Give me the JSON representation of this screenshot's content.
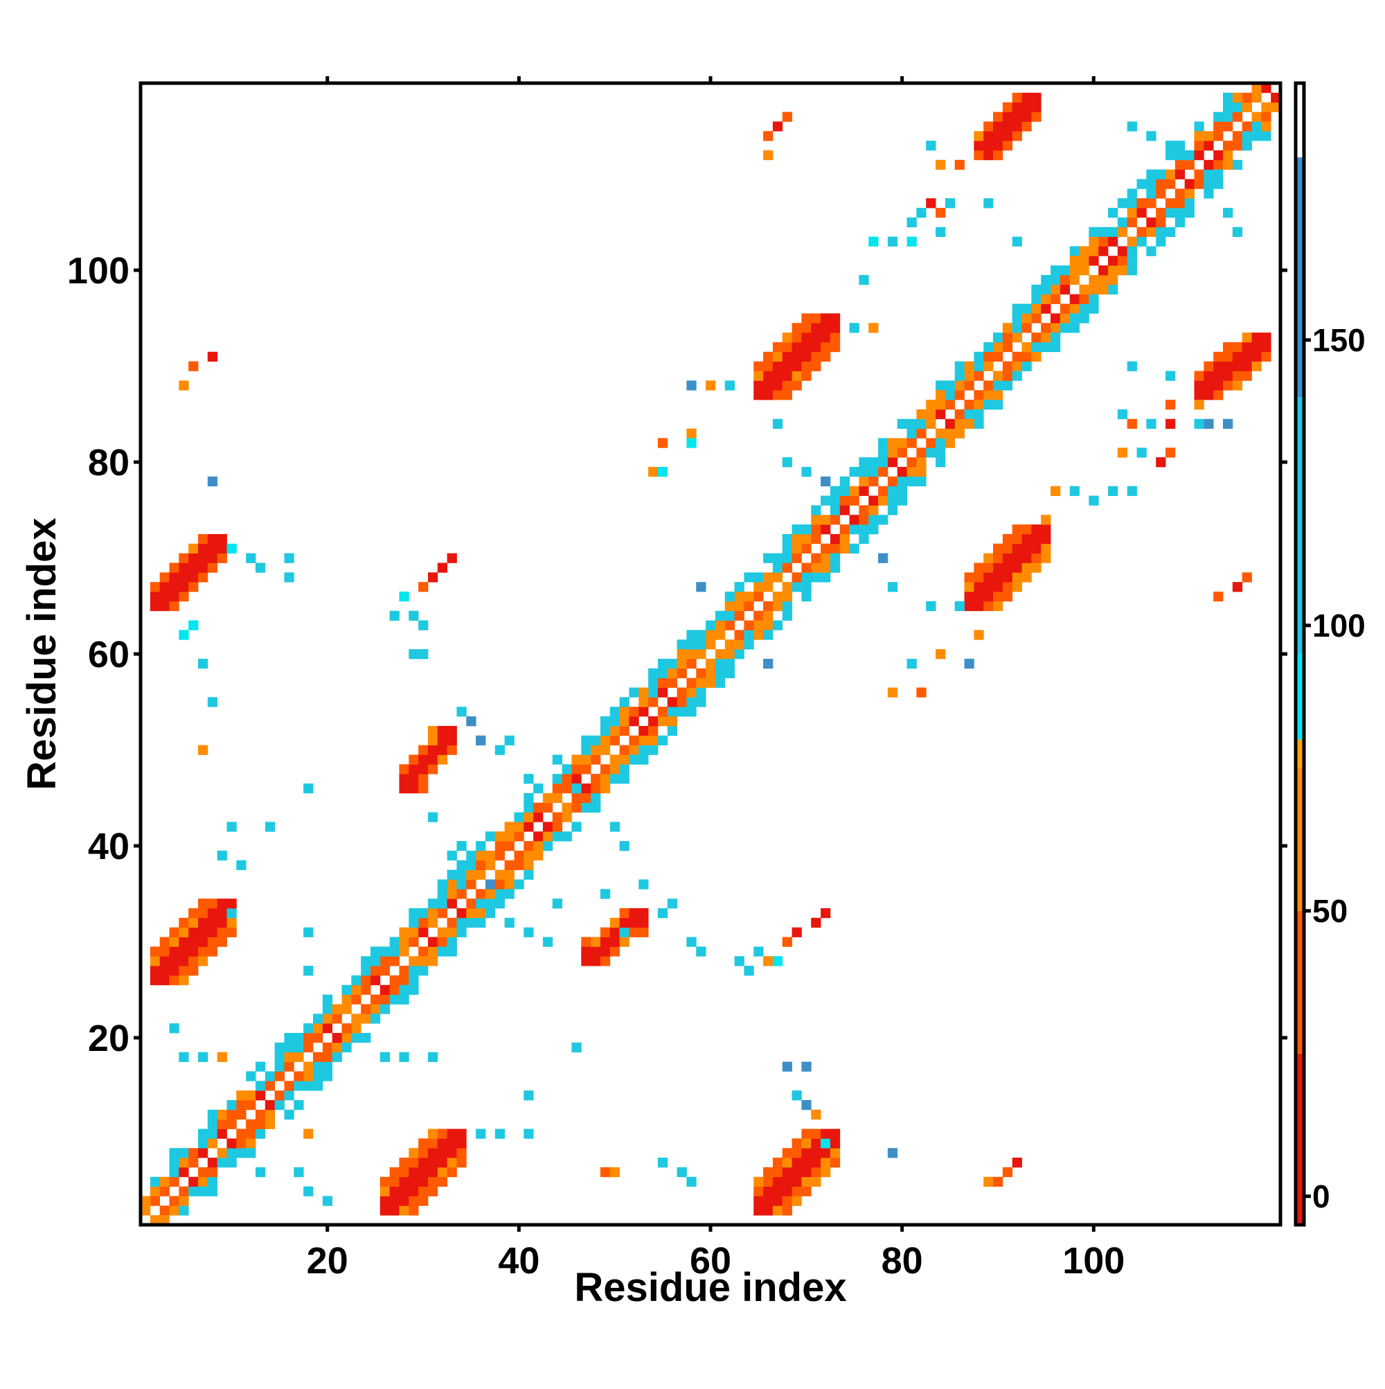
{
  "chart_data": {
    "type": "heatmap",
    "title": "",
    "xlabel": "Residue index",
    "ylabel": "Residue index",
    "xlim": [
      1,
      119
    ],
    "ylim": [
      1,
      119
    ],
    "x_ticks": [
      20,
      40,
      60,
      80,
      100
    ],
    "y_ticks": [
      20,
      40,
      60,
      80,
      100
    ],
    "colorbar": {
      "ticks": [
        0,
        50,
        100,
        150
      ],
      "range": [
        -5,
        195
      ],
      "bands": [
        {
          "from": -5,
          "to": 25,
          "color": "#e8160c"
        },
        {
          "from": 25,
          "to": 50,
          "color": "#ff5a00"
        },
        {
          "from": 50,
          "to": 75,
          "color": "#ff8c00"
        },
        {
          "from": 75,
          "to": 80,
          "color": "#ffa500"
        },
        {
          "from": 80,
          "to": 95,
          "color": "#00e5ee"
        },
        {
          "from": 95,
          "to": 140,
          "color": "#1ec8e0"
        },
        {
          "from": 140,
          "to": 182,
          "color": "#3e8fc8"
        },
        {
          "from": 182,
          "to": 195,
          "color": "#ffffff"
        }
      ]
    },
    "value_colors": {
      "red": "#e8160c",
      "orange_red": "#ff5a00",
      "orange": "#ff8c00",
      "amber": "#ffa500",
      "cyan": "#00e5ee",
      "sky": "#1ec8e0",
      "steel": "#3e8fc8"
    },
    "grid": false,
    "diagonal_band": {
      "from": 2,
      "to": 118,
      "half_width": 2
    },
    "sheet_blocks": [
      {
        "x": [
          26,
          34
        ],
        "y": [
          2,
          10
        ],
        "color_core": "red",
        "color_edge": "orange_red"
      },
      {
        "x": [
          65,
          73
        ],
        "y": [
          2,
          10
        ],
        "color_core": "red",
        "color_edge": "orange_red"
      },
      {
        "x": [
          2,
          10
        ],
        "y": [
          26,
          34
        ],
        "color_core": "red",
        "color_edge": "orange_red"
      },
      {
        "x": [
          2,
          9
        ],
        "y": [
          65,
          72
        ],
        "color_core": "red",
        "color_edge": "orange_red"
      },
      {
        "x": [
          28,
          33
        ],
        "y": [
          46,
          52
        ],
        "color_core": "red",
        "color_edge": "orange_red"
      },
      {
        "x": [
          47,
          53
        ],
        "y": [
          28,
          33
        ],
        "color_core": "red",
        "color_edge": "orange_red"
      },
      {
        "x": [
          65,
          73
        ],
        "y": [
          87,
          95
        ],
        "color_core": "red",
        "color_edge": "orange_red"
      },
      {
        "x": [
          87,
          95
        ],
        "y": [
          65,
          73
        ],
        "color_core": "red",
        "color_edge": "orange_red"
      },
      {
        "x": [
          88,
          94
        ],
        "y": [
          112,
          118
        ],
        "color_core": "red",
        "color_edge": "orange_red"
      },
      {
        "x": [
          111,
          118
        ],
        "y": [
          87,
          93
        ],
        "color_core": "red",
        "color_edge": "orange_red"
      }
    ],
    "scatter_cells": [
      {
        "x": 5,
        "y": 88,
        "c": "orange"
      },
      {
        "x": 6,
        "y": 90,
        "c": "orange_red"
      },
      {
        "x": 8,
        "y": 91,
        "c": "red"
      },
      {
        "x": 8,
        "y": 78,
        "c": "steel"
      },
      {
        "x": 10,
        "y": 71,
        "c": "cyan"
      },
      {
        "x": 12,
        "y": 70,
        "c": "sky"
      },
      {
        "x": 13,
        "y": 69,
        "c": "sky"
      },
      {
        "x": 16,
        "y": 70,
        "c": "sky"
      },
      {
        "x": 16,
        "y": 68,
        "c": "sky"
      },
      {
        "x": 5,
        "y": 62,
        "c": "cyan"
      },
      {
        "x": 6,
        "y": 63,
        "c": "cyan"
      },
      {
        "x": 7,
        "y": 59,
        "c": "sky"
      },
      {
        "x": 8,
        "y": 55,
        "c": "sky"
      },
      {
        "x": 7,
        "y": 50,
        "c": "orange"
      },
      {
        "x": 9,
        "y": 39,
        "c": "sky"
      },
      {
        "x": 10,
        "y": 42,
        "c": "sky"
      },
      {
        "x": 11,
        "y": 38,
        "c": "sky"
      },
      {
        "x": 14,
        "y": 42,
        "c": "sky"
      },
      {
        "x": 18,
        "y": 46,
        "c": "sky"
      },
      {
        "x": 18,
        "y": 31,
        "c": "sky"
      },
      {
        "x": 18,
        "y": 27,
        "c": "sky"
      },
      {
        "x": 10,
        "y": 33,
        "c": "sky"
      },
      {
        "x": 4,
        "y": 21,
        "c": "sky"
      },
      {
        "x": 5,
        "y": 18,
        "c": "sky"
      },
      {
        "x": 7,
        "y": 18,
        "c": "sky"
      },
      {
        "x": 9,
        "y": 18,
        "c": "orange"
      },
      {
        "x": 13,
        "y": 6,
        "c": "sky"
      },
      {
        "x": 17,
        "y": 6,
        "c": "sky"
      },
      {
        "x": 18,
        "y": 4,
        "c": "sky"
      },
      {
        "x": 20,
        "y": 3,
        "c": "sky"
      },
      {
        "x": 18,
        "y": 10,
        "c": "orange"
      },
      {
        "x": 26,
        "y": 18,
        "c": "sky"
      },
      {
        "x": 28,
        "y": 18,
        "c": "sky"
      },
      {
        "x": 31,
        "y": 18,
        "c": "sky"
      },
      {
        "x": 36,
        "y": 10,
        "c": "sky"
      },
      {
        "x": 38,
        "y": 10,
        "c": "sky"
      },
      {
        "x": 41,
        "y": 10,
        "c": "sky"
      },
      {
        "x": 41,
        "y": 14,
        "c": "sky"
      },
      {
        "x": 46,
        "y": 19,
        "c": "sky"
      },
      {
        "x": 49,
        "y": 6,
        "c": "orange_red"
      },
      {
        "x": 50,
        "y": 6,
        "c": "orange"
      },
      {
        "x": 55,
        "y": 7,
        "c": "sky"
      },
      {
        "x": 57,
        "y": 6,
        "c": "sky"
      },
      {
        "x": 58,
        "y": 5,
        "c": "sky"
      },
      {
        "x": 68,
        "y": 17,
        "c": "steel"
      },
      {
        "x": 70,
        "y": 17,
        "c": "steel"
      },
      {
        "x": 69,
        "y": 14,
        "c": "sky"
      },
      {
        "x": 70,
        "y": 13,
        "c": "steel"
      },
      {
        "x": 71,
        "y": 12,
        "c": "orange"
      },
      {
        "x": 72,
        "y": 9,
        "c": "cyan"
      },
      {
        "x": 79,
        "y": 8,
        "c": "steel"
      },
      {
        "x": 89,
        "y": 5,
        "c": "orange"
      },
      {
        "x": 90,
        "y": 5,
        "c": "orange_red"
      },
      {
        "x": 91,
        "y": 6,
        "c": "orange_red"
      },
      {
        "x": 92,
        "y": 7,
        "c": "red"
      },
      {
        "x": 63,
        "y": 28,
        "c": "sky"
      },
      {
        "x": 64,
        "y": 27,
        "c": "sky"
      },
      {
        "x": 65,
        "y": 29,
        "c": "sky"
      },
      {
        "x": 66,
        "y": 28,
        "c": "orange"
      },
      {
        "x": 67,
        "y": 28,
        "c": "cyan"
      },
      {
        "x": 68,
        "y": 30,
        "c": "orange_red"
      },
      {
        "x": 69,
        "y": 31,
        "c": "red"
      },
      {
        "x": 71,
        "y": 32,
        "c": "red"
      },
      {
        "x": 72,
        "y": 33,
        "c": "red"
      },
      {
        "x": 58,
        "y": 30,
        "c": "sky"
      },
      {
        "x": 59,
        "y": 29,
        "c": "sky"
      },
      {
        "x": 55,
        "y": 33,
        "c": "sky"
      },
      {
        "x": 56,
        "y": 34,
        "c": "sky"
      },
      {
        "x": 51,
        "y": 31,
        "c": "sky"
      },
      {
        "x": 49,
        "y": 35,
        "c": "sky"
      },
      {
        "x": 53,
        "y": 36,
        "c": "sky"
      },
      {
        "x": 29,
        "y": 60,
        "c": "sky"
      },
      {
        "x": 30,
        "y": 60,
        "c": "sky"
      },
      {
        "x": 27,
        "y": 64,
        "c": "sky"
      },
      {
        "x": 29,
        "y": 64,
        "c": "sky"
      },
      {
        "x": 30,
        "y": 63,
        "c": "sky"
      },
      {
        "x": 28,
        "y": 66,
        "c": "cyan"
      },
      {
        "x": 30,
        "y": 67,
        "c": "orange_red"
      },
      {
        "x": 31,
        "y": 68,
        "c": "red"
      },
      {
        "x": 32,
        "y": 69,
        "c": "red"
      },
      {
        "x": 33,
        "y": 70,
        "c": "red"
      },
      {
        "x": 59,
        "y": 67,
        "c": "steel"
      },
      {
        "x": 66,
        "y": 59,
        "c": "steel"
      },
      {
        "x": 54,
        "y": 79,
        "c": "orange"
      },
      {
        "x": 55,
        "y": 79,
        "c": "cyan"
      },
      {
        "x": 55,
        "y": 82,
        "c": "orange_red"
      },
      {
        "x": 58,
        "y": 83,
        "c": "orange"
      },
      {
        "x": 58,
        "y": 82,
        "c": "cyan"
      },
      {
        "x": 62,
        "y": 88,
        "c": "sky"
      },
      {
        "x": 58,
        "y": 88,
        "c": "steel"
      },
      {
        "x": 60,
        "y": 88,
        "c": "orange"
      },
      {
        "x": 67,
        "y": 84,
        "c": "sky"
      },
      {
        "x": 68,
        "y": 80,
        "c": "sky"
      },
      {
        "x": 70,
        "y": 79,
        "c": "sky"
      },
      {
        "x": 72,
        "y": 78,
        "c": "steel"
      },
      {
        "x": 75,
        "y": 94,
        "c": "sky"
      },
      {
        "x": 77,
        "y": 94,
        "c": "orange"
      },
      {
        "x": 76,
        "y": 99,
        "c": "sky"
      },
      {
        "x": 77,
        "y": 103,
        "c": "cyan"
      },
      {
        "x": 79,
        "y": 103,
        "c": "sky"
      },
      {
        "x": 81,
        "y": 103,
        "c": "cyan"
      },
      {
        "x": 81,
        "y": 105,
        "c": "sky"
      },
      {
        "x": 82,
        "y": 106,
        "c": "sky"
      },
      {
        "x": 83,
        "y": 107,
        "c": "red"
      },
      {
        "x": 84,
        "y": 106,
        "c": "orange_red"
      },
      {
        "x": 85,
        "y": 107,
        "c": "sky"
      },
      {
        "x": 84,
        "y": 104,
        "c": "sky"
      },
      {
        "x": 89,
        "y": 107,
        "c": "sky"
      },
      {
        "x": 92,
        "y": 103,
        "c": "sky"
      },
      {
        "x": 83,
        "y": 113,
        "c": "sky"
      },
      {
        "x": 84,
        "y": 111,
        "c": "orange"
      },
      {
        "x": 86,
        "y": 111,
        "c": "orange_red"
      },
      {
        "x": 88,
        "y": 112,
        "c": "orange_red"
      },
      {
        "x": 78,
        "y": 70,
        "c": "steel"
      },
      {
        "x": 79,
        "y": 67,
        "c": "sky"
      },
      {
        "x": 83,
        "y": 65,
        "c": "sky"
      },
      {
        "x": 86,
        "y": 65,
        "c": "sky"
      },
      {
        "x": 79,
        "y": 56,
        "c": "orange"
      },
      {
        "x": 82,
        "y": 56,
        "c": "orange_red"
      },
      {
        "x": 81,
        "y": 59,
        "c": "sky"
      },
      {
        "x": 84,
        "y": 60,
        "c": "orange"
      },
      {
        "x": 87,
        "y": 59,
        "c": "steel"
      },
      {
        "x": 88,
        "y": 62,
        "c": "orange"
      },
      {
        "x": 95,
        "y": 74,
        "c": "orange"
      },
      {
        "x": 96,
        "y": 77,
        "c": "orange"
      },
      {
        "x": 98,
        "y": 77,
        "c": "sky"
      },
      {
        "x": 100,
        "y": 76,
        "c": "sky"
      },
      {
        "x": 102,
        "y": 77,
        "c": "sky"
      },
      {
        "x": 104,
        "y": 77,
        "c": "sky"
      },
      {
        "x": 103,
        "y": 81,
        "c": "orange"
      },
      {
        "x": 105,
        "y": 81,
        "c": "sky"
      },
      {
        "x": 107,
        "y": 80,
        "c": "red"
      },
      {
        "x": 108,
        "y": 81,
        "c": "orange_red"
      },
      {
        "x": 108,
        "y": 84,
        "c": "red"
      },
      {
        "x": 108,
        "y": 86,
        "c": "orange_red"
      },
      {
        "x": 104,
        "y": 84,
        "c": "orange_red"
      },
      {
        "x": 106,
        "y": 84,
        "c": "sky"
      },
      {
        "x": 103,
        "y": 85,
        "c": "sky"
      },
      {
        "x": 104,
        "y": 90,
        "c": "sky"
      },
      {
        "x": 108,
        "y": 89,
        "c": "sky"
      },
      {
        "x": 111,
        "y": 86,
        "c": "orange"
      },
      {
        "x": 112,
        "y": 84,
        "c": "steel"
      },
      {
        "x": 114,
        "y": 84,
        "c": "steel"
      },
      {
        "x": 111,
        "y": 84,
        "c": "sky"
      },
      {
        "x": 113,
        "y": 66,
        "c": "orange_red"
      },
      {
        "x": 115,
        "y": 67,
        "c": "red"
      },
      {
        "x": 116,
        "y": 68,
        "c": "orange_red"
      },
      {
        "x": 113,
        "y": 110,
        "c": "sky"
      },
      {
        "x": 114,
        "y": 106,
        "c": "sky"
      },
      {
        "x": 115,
        "y": 104,
        "c": "sky"
      },
      {
        "x": 104,
        "y": 115,
        "c": "sky"
      },
      {
        "x": 106,
        "y": 114,
        "c": "sky"
      },
      {
        "x": 108,
        "y": 113,
        "c": "sky"
      },
      {
        "x": 66,
        "y": 114,
        "c": "orange_red"
      },
      {
        "x": 67,
        "y": 115,
        "c": "red"
      },
      {
        "x": 68,
        "y": 116,
        "c": "orange_red"
      },
      {
        "x": 66,
        "y": 112,
        "c": "orange"
      },
      {
        "x": 41,
        "y": 47,
        "c": "sky"
      },
      {
        "x": 38,
        "y": 50,
        "c": "sky"
      },
      {
        "x": 39,
        "y": 51,
        "c": "sky"
      },
      {
        "x": 44,
        "y": 49,
        "c": "sky"
      },
      {
        "x": 46,
        "y": 46,
        "c": "sky"
      },
      {
        "x": 48,
        "y": 44,
        "c": "sky"
      },
      {
        "x": 50,
        "y": 42,
        "c": "sky"
      },
      {
        "x": 51,
        "y": 40,
        "c": "sky"
      },
      {
        "x": 33,
        "y": 39,
        "c": "sky"
      },
      {
        "x": 34,
        "y": 40,
        "c": "sky"
      },
      {
        "x": 31,
        "y": 43,
        "c": "sky"
      },
      {
        "x": 36,
        "y": 51,
        "c": "steel"
      },
      {
        "x": 35,
        "y": 53,
        "c": "steel"
      },
      {
        "x": 34,
        "y": 54,
        "c": "sky"
      },
      {
        "x": 37,
        "y": 36,
        "c": "steel"
      },
      {
        "x": 39,
        "y": 32,
        "c": "sky"
      },
      {
        "x": 41,
        "y": 31,
        "c": "sky"
      },
      {
        "x": 43,
        "y": 30,
        "c": "sky"
      },
      {
        "x": 44,
        "y": 34,
        "c": "sky"
      }
    ]
  }
}
